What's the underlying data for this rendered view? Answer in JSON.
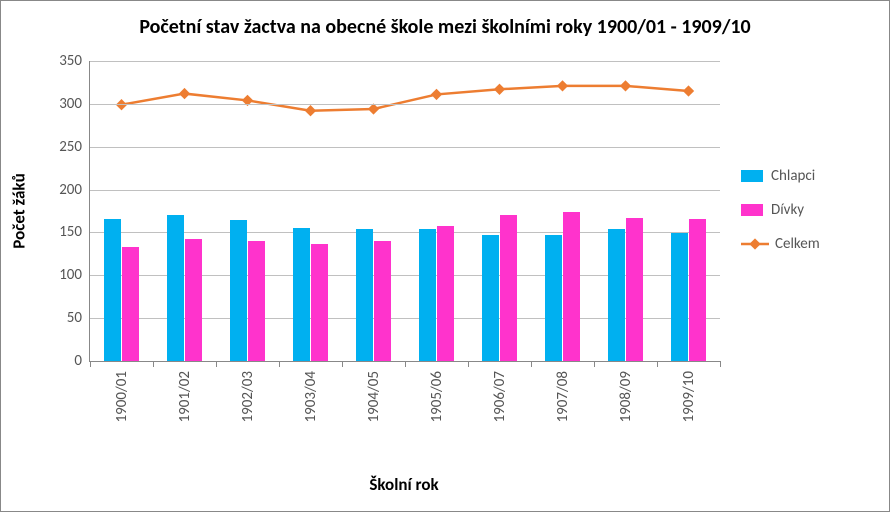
{
  "chart": {
    "type": "bar+line",
    "title": "Početní stav žactva na obecné škole mezi školními roky 1900/01 - 1909/10",
    "title_fontsize": 20,
    "xlabel": "Školní rok",
    "ylabel": "Počet žáků",
    "label_fontsize": 17,
    "tick_fontsize": 15,
    "background_color": "#ffffff",
    "border_color": "#888888",
    "grid_color": "#c0c0c0",
    "ylim": [
      0,
      350
    ],
    "ytick_step": 50,
    "yticks": [
      0,
      50,
      100,
      150,
      200,
      250,
      300,
      350
    ],
    "categories": [
      "1900/01",
      "1901/02",
      "1902/03",
      "1903/04",
      "1904/05",
      "1905/06",
      "1906/07",
      "1907/08",
      "1908/09",
      "1909/10"
    ],
    "bar_series": [
      {
        "name": "Chlapci",
        "color": "#00b0f0",
        "values": [
          166,
          170,
          164,
          155,
          154,
          154,
          147,
          147,
          154,
          149
        ]
      },
      {
        "name": "Dívky",
        "color": "#ff33cc",
        "values": [
          133,
          142,
          140,
          137,
          140,
          157,
          170,
          174,
          167,
          166
        ]
      }
    ],
    "line_series": [
      {
        "name": "Celkem",
        "color": "#ed7d31",
        "values": [
          299,
          312,
          304,
          292,
          294,
          311,
          317,
          321,
          321,
          315
        ],
        "line_width": 2.5,
        "marker": "diamond",
        "marker_size": 8
      }
    ],
    "bar_group_width": 0.56,
    "legend": {
      "items": [
        "Chlapci",
        "Dívky",
        "Celkem"
      ],
      "position": "right",
      "fontsize": 15
    },
    "xtick_rotation": -90
  }
}
